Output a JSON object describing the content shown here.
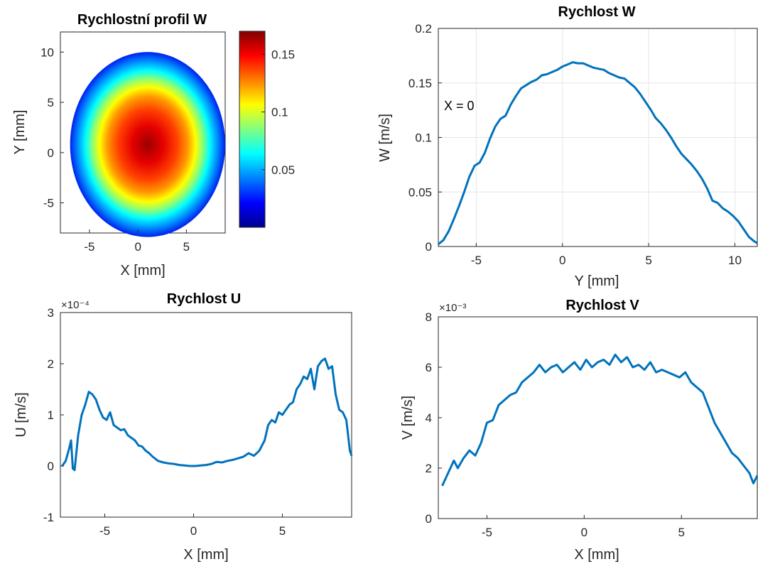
{
  "colors": {
    "line": "#0072BD",
    "axis": "#262626",
    "grid": "#e6e6e6"
  },
  "chart_data": [
    {
      "id": "heatmap",
      "type": "heatmap",
      "title": "Rychlostní profil W",
      "xlabel": "X [mm]",
      "ylabel": "Y [mm]",
      "xlim": [
        -8,
        9
      ],
      "ylim": [
        -8,
        12
      ],
      "xticks": [
        -5,
        0,
        5
      ],
      "yticks": [
        -5,
        0,
        5,
        10
      ],
      "field": {
        "shape": "ellipse",
        "center": [
          1.0,
          0.8
        ],
        "semi_axes": [
          8.0,
          9.2
        ],
        "peak": 0.17,
        "edge": 0.01
      },
      "colorbar": {
        "colormap": "jet",
        "clim": [
          0,
          0.17
        ],
        "ticks": [
          0.05,
          0.1,
          0.15
        ],
        "tick_labels": [
          "0.05",
          "0.1",
          "0.15"
        ]
      }
    },
    {
      "id": "w",
      "type": "line",
      "title": "Rychlost W",
      "xlabel": "Y [mm]",
      "ylabel": "W [m/s]",
      "xlim": [
        -7.2,
        11.3
      ],
      "ylim": [
        0,
        0.2
      ],
      "xticks": [
        -5,
        0,
        5,
        10
      ],
      "yticks": [
        0,
        0.05,
        0.1,
        0.15,
        0.2
      ],
      "ytick_labels": [
        "0",
        "0.05",
        "0.1",
        "0.15",
        "0.2"
      ],
      "grid": true,
      "annotation": "X = 0",
      "series": [
        {
          "x": [
            -7.2,
            -6.9,
            -6.6,
            -6.3,
            -6.0,
            -5.7,
            -5.4,
            -5.1,
            -4.8,
            -4.5,
            -4.2,
            -3.9,
            -3.6,
            -3.3,
            -3.0,
            -2.7,
            -2.4,
            -2.1,
            -1.8,
            -1.5,
            -1.2,
            -0.9,
            -0.6,
            -0.3,
            0.0,
            0.3,
            0.6,
            0.9,
            1.2,
            1.5,
            1.8,
            2.1,
            2.4,
            2.7,
            3.0,
            3.3,
            3.6,
            3.9,
            4.2,
            4.5,
            4.8,
            5.1,
            5.4,
            5.7,
            6.0,
            6.3,
            6.6,
            6.9,
            7.2,
            7.5,
            7.8,
            8.1,
            8.4,
            8.7,
            9.0,
            9.3,
            9.6,
            9.9,
            10.2,
            10.5,
            10.8,
            11.1,
            11.3
          ],
          "y": [
            0.002,
            0.006,
            0.014,
            0.025,
            0.037,
            0.05,
            0.064,
            0.074,
            0.077,
            0.086,
            0.099,
            0.11,
            0.117,
            0.12,
            0.13,
            0.138,
            0.145,
            0.148,
            0.151,
            0.153,
            0.157,
            0.158,
            0.16,
            0.162,
            0.165,
            0.167,
            0.169,
            0.168,
            0.168,
            0.166,
            0.164,
            0.163,
            0.162,
            0.159,
            0.157,
            0.155,
            0.154,
            0.15,
            0.146,
            0.14,
            0.133,
            0.126,
            0.118,
            0.113,
            0.107,
            0.1,
            0.092,
            0.085,
            0.08,
            0.075,
            0.069,
            0.062,
            0.053,
            0.042,
            0.04,
            0.035,
            0.032,
            0.028,
            0.023,
            0.016,
            0.009,
            0.005,
            0.003
          ]
        }
      ]
    },
    {
      "id": "u",
      "type": "line",
      "title": "Rychlost U",
      "xlabel": "X [mm]",
      "ylabel": "U [m/s]",
      "xlim": [
        -7.5,
        8.9
      ],
      "ylim": [
        -1,
        3
      ],
      "xticks": [
        -5,
        0,
        5
      ],
      "yticks": [
        -1,
        0,
        1,
        2,
        3
      ],
      "multiplier": "×10⁻⁴",
      "grid": false,
      "series": [
        {
          "x": [
            -7.4,
            -7.2,
            -7.0,
            -6.9,
            -6.8,
            -6.7,
            -6.5,
            -6.3,
            -6.1,
            -5.9,
            -5.7,
            -5.5,
            -5.3,
            -5.1,
            -4.9,
            -4.7,
            -4.5,
            -4.3,
            -4.1,
            -3.9,
            -3.7,
            -3.5,
            -3.3,
            -3.1,
            -2.9,
            -2.7,
            -2.5,
            -2.3,
            -2.0,
            -1.7,
            -1.4,
            -1.1,
            -0.8,
            -0.5,
            -0.2,
            0.1,
            0.4,
            0.7,
            1.0,
            1.3,
            1.6,
            1.9,
            2.2,
            2.5,
            2.8,
            3.1,
            3.4,
            3.7,
            4.0,
            4.2,
            4.4,
            4.6,
            4.8,
            5.0,
            5.2,
            5.4,
            5.6,
            5.8,
            6.0,
            6.2,
            6.4,
            6.6,
            6.8,
            7.0,
            7.2,
            7.4,
            7.6,
            7.8,
            8.0,
            8.2,
            8.4,
            8.6,
            8.8,
            8.9
          ],
          "y": [
            0.0,
            0.1,
            0.35,
            0.5,
            -0.05,
            -0.08,
            0.6,
            1.0,
            1.2,
            1.45,
            1.4,
            1.3,
            1.1,
            0.95,
            0.9,
            1.05,
            0.8,
            0.75,
            0.7,
            0.72,
            0.6,
            0.55,
            0.5,
            0.4,
            0.38,
            0.3,
            0.25,
            0.18,
            0.1,
            0.07,
            0.05,
            0.04,
            0.02,
            0.01,
            0.0,
            0.0,
            0.01,
            0.02,
            0.04,
            0.08,
            0.07,
            0.1,
            0.12,
            0.15,
            0.18,
            0.25,
            0.2,
            0.3,
            0.5,
            0.8,
            0.9,
            0.85,
            1.05,
            1.0,
            1.1,
            1.2,
            1.25,
            1.5,
            1.6,
            1.75,
            1.7,
            1.9,
            1.5,
            1.95,
            2.05,
            2.1,
            1.9,
            1.95,
            1.4,
            1.1,
            1.05,
            0.9,
            0.3,
            0.2
          ]
        }
      ]
    },
    {
      "id": "v",
      "type": "line",
      "title": "Rychlost V",
      "xlabel": "X [mm]",
      "ylabel": "V [m/s]",
      "xlim": [
        -7.5,
        8.9
      ],
      "ylim": [
        0,
        8
      ],
      "xticks": [
        -5,
        0,
        5
      ],
      "yticks": [
        0,
        2,
        4,
        6,
        8
      ],
      "multiplier": "×10⁻³",
      "grid": false,
      "series": [
        {
          "x": [
            -7.3,
            -7.0,
            -6.7,
            -6.5,
            -6.2,
            -5.9,
            -5.6,
            -5.3,
            -5.0,
            -4.7,
            -4.4,
            -4.1,
            -3.8,
            -3.5,
            -3.2,
            -2.9,
            -2.6,
            -2.3,
            -2.0,
            -1.7,
            -1.4,
            -1.1,
            -0.8,
            -0.5,
            -0.2,
            0.1,
            0.4,
            0.7,
            1.0,
            1.3,
            1.6,
            1.9,
            2.2,
            2.5,
            2.8,
            3.1,
            3.4,
            3.7,
            4.0,
            4.3,
            4.6,
            4.9,
            5.2,
            5.5,
            5.8,
            6.1,
            6.4,
            6.7,
            7.0,
            7.3,
            7.6,
            7.9,
            8.2,
            8.5,
            8.7,
            8.9
          ],
          "y": [
            1.3,
            1.8,
            2.3,
            2.0,
            2.4,
            2.7,
            2.5,
            3.0,
            3.8,
            3.9,
            4.5,
            4.7,
            4.9,
            5.0,
            5.4,
            5.6,
            5.8,
            6.1,
            5.8,
            6.0,
            6.1,
            5.8,
            6.0,
            6.2,
            5.9,
            6.3,
            6.0,
            6.2,
            6.3,
            6.1,
            6.5,
            6.2,
            6.4,
            6.0,
            6.1,
            5.9,
            6.2,
            5.8,
            5.9,
            5.8,
            5.7,
            5.6,
            5.8,
            5.4,
            5.2,
            5.0,
            4.4,
            3.8,
            3.4,
            3.0,
            2.6,
            2.4,
            2.1,
            1.8,
            1.4,
            1.7
          ]
        }
      ]
    }
  ]
}
